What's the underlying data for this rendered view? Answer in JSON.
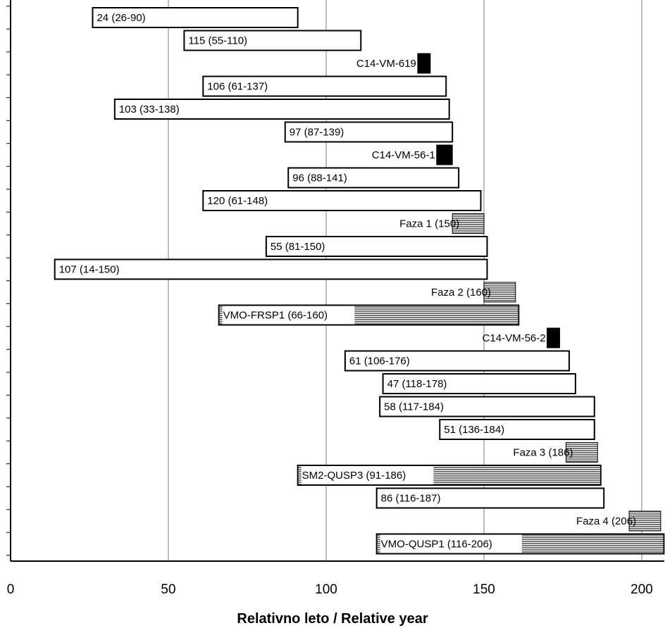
{
  "chart_data": {
    "type": "bar",
    "orientation": "horizontal-range",
    "xlabel": "Relativno leto / Relative year",
    "xlim": [
      0,
      207
    ],
    "x_ticks": [
      "0",
      "50",
      "100",
      "150",
      "200"
    ],
    "grid": "vertical",
    "colors": {
      "open": "#ffffff",
      "c14": "#000000",
      "hatched": "#8a8a8a",
      "grid": "#9a9a9a",
      "outline": "#000000"
    },
    "bars": [
      {
        "label": "24 (26-90)",
        "start": 26,
        "end": 91,
        "kind": "open"
      },
      {
        "label": "115 (55-110)",
        "start": 55,
        "end": 111,
        "kind": "open"
      },
      {
        "label": "C14-VM-619",
        "start": 129,
        "end": 133,
        "kind": "c14"
      },
      {
        "label": "106 (61-137)",
        "start": 61,
        "end": 138,
        "kind": "open"
      },
      {
        "label": "103 (33-138)",
        "start": 33,
        "end": 139,
        "kind": "open"
      },
      {
        "label": "97 (87-139)",
        "start": 87,
        "end": 140,
        "kind": "open"
      },
      {
        "label": "C14-VM-56-1",
        "start": 135,
        "end": 140,
        "kind": "c14"
      },
      {
        "label": "96 (88-141)",
        "start": 88,
        "end": 142,
        "kind": "open"
      },
      {
        "label": "120 (61-148)",
        "start": 61,
        "end": 149,
        "kind": "open"
      },
      {
        "label": "Faza 1 (150)",
        "start": 140,
        "end": 150,
        "kind": "hatched"
      },
      {
        "label": "55 (81-150)",
        "start": 81,
        "end": 151,
        "kind": "open"
      },
      {
        "label": "107 (14-150)",
        "start": 14,
        "end": 151,
        "kind": "open"
      },
      {
        "label": "Faza 2 (160)",
        "start": 150,
        "end": 160,
        "kind": "hatched"
      },
      {
        "label": "VMO-FRSP1 (66-160)",
        "start": 66,
        "end": 161,
        "kind": "hatched-partial",
        "hatch_start": 109
      },
      {
        "label": "C14-VM-56-2",
        "start": 170,
        "end": 174,
        "kind": "c14"
      },
      {
        "label": "61 (106-176)",
        "start": 106,
        "end": 177,
        "kind": "open"
      },
      {
        "label": "47 (118-178)",
        "start": 118,
        "end": 179,
        "kind": "open"
      },
      {
        "label": "58 (117-184)",
        "start": 117,
        "end": 185,
        "kind": "open"
      },
      {
        "label": "51 (136-184)",
        "start": 136,
        "end": 185,
        "kind": "open"
      },
      {
        "label": "Faza 3 (186)",
        "start": 176,
        "end": 186,
        "kind": "hatched"
      },
      {
        "label": "SM2-QUSP3 (91-186)",
        "start": 91,
        "end": 187,
        "kind": "hatched-partial",
        "hatch_start": 134
      },
      {
        "label": "86 (116-187)",
        "start": 116,
        "end": 188,
        "kind": "open"
      },
      {
        "label": "Faza 4 (206)",
        "start": 196,
        "end": 206,
        "kind": "hatched"
      },
      {
        "label": "VMO-QUSP1 (116-206)",
        "start": 116,
        "end": 207,
        "kind": "hatched-partial",
        "hatch_start": 162
      }
    ]
  }
}
